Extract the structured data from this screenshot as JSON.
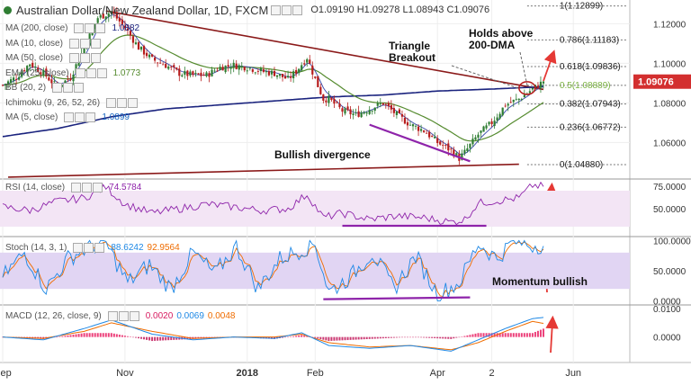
{
  "header": {
    "symbol": "Australian Dollar/New Zealand Dollar, 1D, FXCM",
    "open": "O1.09190",
    "high": "H1.09278",
    "low": "L1.08943",
    "close": "C1.09076"
  },
  "indicators": [
    {
      "label": "MA (200, close)",
      "value": "1.0882",
      "color": "#1a237e"
    },
    {
      "label": "MA (10, close)",
      "value": "",
      "color": "#888888"
    },
    {
      "label": "MA (50, close)",
      "value": "",
      "color": "#888888"
    },
    {
      "label": "EMA (25, close)",
      "value": "1.0773",
      "color": "#558b2f"
    },
    {
      "label": "BB (20, 2)",
      "value": "",
      "color": "#888888"
    },
    {
      "label": "Ichimoku (9, 26, 52, 26)",
      "value": "",
      "color": "#888888"
    },
    {
      "label": "MA (5, close)",
      "value": "1.0899",
      "color": "#1565c0"
    }
  ],
  "annotations": {
    "triangle_breakout": "Triangle\nBreakout",
    "holds_above": "Holds above\n200-DMA",
    "bullish_divergence": "Bullish divergence",
    "momentum_bullish": "Momentum bullish"
  },
  "price_badge": "1.09076",
  "colors": {
    "up_candle": "#2e7d32",
    "down_candle": "#b71c1c",
    "ma200": "#1a237e",
    "ema": "#558b2f",
    "trendline": "#8b1a1a",
    "divergence": "#8e24aa",
    "badge": "#d32f2f",
    "arrow": "#e53935",
    "fib_label": "#222222",
    "fib_mid": "#7cb342"
  },
  "chart_data": [
    {
      "type": "candlestick",
      "pane": "price",
      "y_ticks": [
        1.06,
        1.08,
        1.1,
        1.12
      ],
      "y_tick_labels": [
        "1.06000",
        "1.08000",
        "1.10000",
        "1.12000"
      ],
      "ylim": [
        1.042,
        1.132
      ],
      "x_tick_labels": [
        "Sep",
        "Nov",
        "2018",
        "Feb",
        "Apr",
        "2",
        "Jun"
      ],
      "x_tick_positions": [
        0,
        45,
        90,
        115,
        160,
        180,
        210
      ],
      "bars_total": 230,
      "close_path": {
        "index": [
          0,
          5,
          10,
          15,
          20,
          25,
          30,
          35,
          40,
          45,
          50,
          55,
          60,
          65,
          70,
          75,
          80,
          85,
          90,
          95,
          100,
          105,
          108,
          112,
          115,
          118,
          120,
          125,
          130,
          135,
          140,
          145,
          150,
          155,
          160,
          165,
          168,
          170,
          175,
          180,
          185,
          190,
          195,
          199
        ],
        "close": [
          1.089,
          1.093,
          1.1,
          1.095,
          1.088,
          1.093,
          1.108,
          1.123,
          1.126,
          1.118,
          1.108,
          1.102,
          1.099,
          1.095,
          1.094,
          1.094,
          1.098,
          1.099,
          1.098,
          1.096,
          1.095,
          1.092,
          1.096,
          1.103,
          1.092,
          1.082,
          1.082,
          1.076,
          1.074,
          1.077,
          1.08,
          1.074,
          1.069,
          1.066,
          1.06,
          1.056,
          1.052,
          1.055,
          1.064,
          1.07,
          1.079,
          1.082,
          1.087,
          1.0908
        ]
      },
      "ma200": {
        "index": [
          0,
          20,
          40,
          60,
          80,
          100,
          120,
          140,
          160,
          180,
          199
        ],
        "value": [
          1.063,
          1.067,
          1.073,
          1.077,
          1.079,
          1.081,
          1.083,
          1.084,
          1.086,
          1.087,
          1.0882
        ]
      },
      "fib_levels": [
        {
          "label": "1(1.12899)",
          "value": 1.12899
        },
        {
          "label": "0.786(1.11183)",
          "value": 1.11183
        },
        {
          "label": "0.618(1.09836)",
          "value": 1.09836
        },
        {
          "label": "0.5(1.08889)",
          "value": 1.08889
        },
        {
          "label": "0.382(1.07943)",
          "value": 1.07943
        },
        {
          "label": "0.236(1.06772)",
          "value": 1.06772
        },
        {
          "label": "0(1.04880)",
          "value": 1.0488
        }
      ],
      "last_price": 1.09076
    },
    {
      "type": "line",
      "pane": "rsi",
      "title": "RSI (14, close)",
      "value_label": "74.5784",
      "y_ticks": [
        50,
        75
      ],
      "y_tick_labels": [
        "50.0000",
        "75.0000"
      ],
      "ylim": [
        20,
        82
      ],
      "band": [
        30,
        70
      ],
      "series": {
        "index": [
          0,
          10,
          20,
          30,
          38,
          45,
          55,
          65,
          75,
          85,
          95,
          105,
          112,
          118,
          125,
          135,
          145,
          155,
          165,
          170,
          175,
          185,
          190,
          195,
          199
        ],
        "value": [
          52,
          48,
          58,
          62,
          74,
          55,
          45,
          50,
          55,
          52,
          48,
          50,
          66,
          40,
          45,
          38,
          42,
          40,
          35,
          38,
          56,
          60,
          62,
          76,
          74.5784
        ]
      }
    },
    {
      "type": "line",
      "pane": "stoch",
      "title": "Stoch (14, 3, 1)",
      "value_labels": [
        "88.6242",
        "92.9564"
      ],
      "y_ticks": [
        0,
        50,
        100
      ],
      "y_tick_labels": [
        "0.0000",
        "50.0000",
        "100.0000"
      ],
      "ylim": [
        -5,
        105
      ],
      "band": [
        20,
        80
      ],
      "series": [
        {
          "index": [
            0,
            8,
            16,
            24,
            32,
            38,
            46,
            54,
            62,
            70,
            78,
            86,
            94,
            102,
            110,
            115,
            120,
            128,
            136,
            144,
            152,
            160,
            168,
            175,
            182,
            188,
            194,
            199
          ],
          "value": [
            40,
            80,
            20,
            70,
            90,
            95,
            30,
            60,
            20,
            80,
            45,
            90,
            20,
            70,
            85,
            95,
            15,
            40,
            80,
            20,
            75,
            10,
            30,
            95,
            70,
            100,
            92,
            93
          ]
        },
        {
          "index": [
            0,
            8,
            16,
            24,
            32,
            38,
            46,
            54,
            62,
            70,
            78,
            86,
            94,
            102,
            110,
            115,
            120,
            128,
            136,
            144,
            152,
            160,
            168,
            175,
            182,
            188,
            194,
            199
          ],
          "value": [
            45,
            70,
            30,
            60,
            85,
            90,
            40,
            55,
            30,
            70,
            50,
            80,
            30,
            65,
            80,
            90,
            25,
            40,
            70,
            30,
            65,
            20,
            30,
            85,
            75,
            95,
            90,
            88.6
          ]
        }
      ]
    },
    {
      "type": "bar",
      "pane": "macd",
      "title": "MACD (12, 26, close, 9)",
      "value_labels": [
        "0.0020",
        "0.0069",
        "0.0048"
      ],
      "y_ticks": [
        0.0,
        0.01
      ],
      "y_tick_labels": [
        "0.0000",
        "0.0100"
      ],
      "ylim": [
        -0.009,
        0.011
      ],
      "macd": {
        "index": [
          0,
          15,
          30,
          40,
          55,
          70,
          85,
          100,
          110,
          120,
          135,
          150,
          165,
          175,
          185,
          195,
          199
        ],
        "value": [
          0.0,
          -0.001,
          0.003,
          0.006,
          0.001,
          -0.001,
          0.0,
          -0.0005,
          0.0015,
          -0.003,
          -0.004,
          -0.003,
          -0.005,
          -0.001,
          0.003,
          0.0065,
          0.0069
        ]
      },
      "signal": {
        "index": [
          0,
          15,
          30,
          40,
          55,
          70,
          85,
          100,
          110,
          120,
          135,
          150,
          165,
          175,
          185,
          195,
          199
        ],
        "value": [
          0.0,
          -0.0005,
          0.002,
          0.005,
          0.002,
          -0.0005,
          0.0,
          0.0,
          0.001,
          -0.002,
          -0.0035,
          -0.003,
          -0.0045,
          -0.002,
          0.002,
          0.0055,
          0.0048
        ]
      }
    }
  ]
}
